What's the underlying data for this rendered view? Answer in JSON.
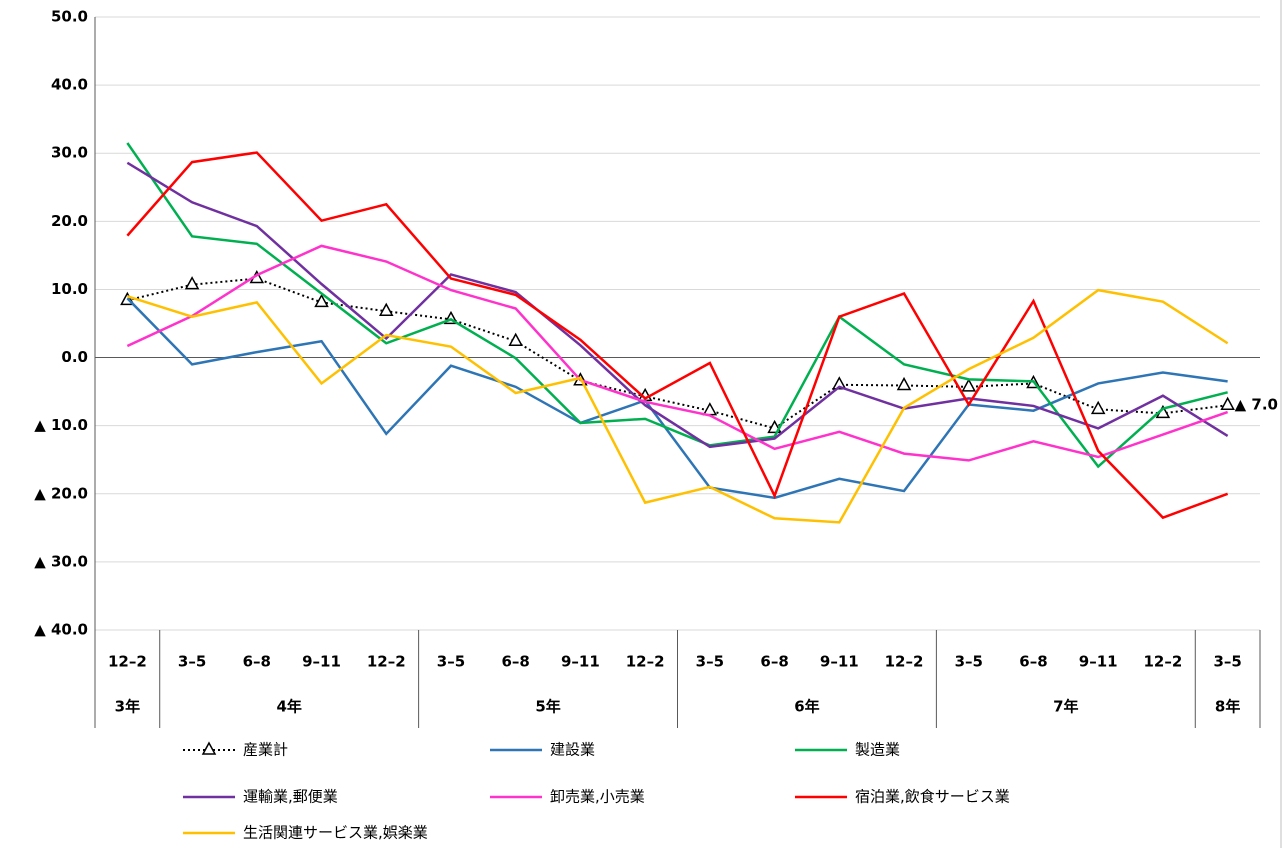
{
  "chart_data": {
    "type": "line",
    "categories": [
      "12–2",
      "3–5",
      "6–8",
      "9–11",
      "12–2",
      "3–5",
      "6–8",
      "9–11",
      "12–2",
      "3–5",
      "6–8",
      "9–11",
      "12–2",
      "3–5",
      "6–8",
      "9–11",
      "12–2",
      "3–5"
    ],
    "category_groups": [
      {
        "label": "3年",
        "span": 1
      },
      {
        "label": "4年",
        "span": 4
      },
      {
        "label": "5年",
        "span": 4
      },
      {
        "label": "6年",
        "span": 4
      },
      {
        "label": "7年",
        "span": 4
      },
      {
        "label": "8年",
        "span": 1
      }
    ],
    "ylim": [
      -40,
      50
    ],
    "yticks": [
      {
        "value": 50,
        "label": "50.0"
      },
      {
        "value": 40,
        "label": "40.0"
      },
      {
        "value": 30,
        "label": "30.0"
      },
      {
        "value": 20,
        "label": "20.0"
      },
      {
        "value": 10,
        "label": "10.0"
      },
      {
        "value": 0,
        "label": "0.0"
      },
      {
        "value": -10,
        "label": "▲ 10.0"
      },
      {
        "value": -20,
        "label": "▲ 20.0"
      },
      {
        "value": -30,
        "label": "▲ 30.0"
      },
      {
        "value": -40,
        "label": "▲ 40.0"
      }
    ],
    "grid": true,
    "series": [
      {
        "name": "産業計",
        "color": "#000000",
        "dotted": true,
        "marker": "triangle",
        "values": [
          8.4,
          10.7,
          11.6,
          8.1,
          6.8,
          5.6,
          2.4,
          -3.4,
          -5.7,
          -7.8,
          -10.4,
          -4.0,
          -4.1,
          -4.3,
          -3.8,
          -7.6,
          -8.2,
          -7.0
        ],
        "value_labels": [
          null,
          null,
          null,
          null,
          null,
          null,
          null,
          null,
          null,
          null,
          null,
          null,
          null,
          null,
          null,
          null,
          null,
          "▲ 7.0"
        ]
      },
      {
        "name": "建設業",
        "color": "#2E75B6",
        "values": [
          8.7,
          -1.0,
          0.8,
          2.4,
          -11.2,
          -1.2,
          -4.3,
          -9.6,
          -6.3,
          -19.1,
          -20.6,
          -17.8,
          -19.6,
          -6.9,
          -7.8,
          -3.8,
          -2.2,
          -3.5
        ]
      },
      {
        "name": "製造業",
        "color": "#00B050",
        "values": [
          31.5,
          17.8,
          16.7,
          9.4,
          2.1,
          5.6,
          -0.1,
          -9.6,
          -9.0,
          -12.9,
          -11.6,
          6.0,
          -1.0,
          -3.2,
          -3.5,
          -16.0,
          -7.5,
          -5.1
        ]
      },
      {
        "name": "運輸業,郵便業",
        "color": "#7030A0",
        "values": [
          28.6,
          22.8,
          19.3,
          10.8,
          2.8,
          12.2,
          9.6,
          1.8,
          -7.0,
          -13.1,
          -11.9,
          -4.3,
          -7.5,
          -6.0,
          -7.1,
          -10.4,
          -5.6,
          -11.5
        ]
      },
      {
        "name": "卸売業,小売業",
        "color": "#FF33CC",
        "values": [
          1.7,
          6.1,
          12.1,
          16.4,
          14.1,
          9.9,
          7.2,
          -3.3,
          -6.5,
          -8.5,
          -13.4,
          -10.9,
          -14.1,
          -15.1,
          -12.3,
          -14.6,
          -11.3,
          -8.0
        ]
      },
      {
        "name": "宿泊業,飲食サービス業",
        "color": "#FF0000",
        "values": [
          17.9,
          28.7,
          30.1,
          20.1,
          22.5,
          11.6,
          9.2,
          2.6,
          -6.0,
          -0.8,
          -20.3,
          6.0,
          9.4,
          -6.9,
          8.3,
          -13.7,
          -23.5,
          -20.0
        ]
      },
      {
        "name": "生活関連サービス業,娯楽業",
        "color": "#FFC000",
        "values": [
          9.0,
          6.0,
          8.1,
          -3.8,
          3.3,
          1.6,
          -5.2,
          -3.0,
          -21.3,
          -19.0,
          -23.6,
          -24.2,
          -7.4,
          -1.7,
          2.9,
          9.9,
          8.2,
          2.1
        ]
      }
    ]
  }
}
